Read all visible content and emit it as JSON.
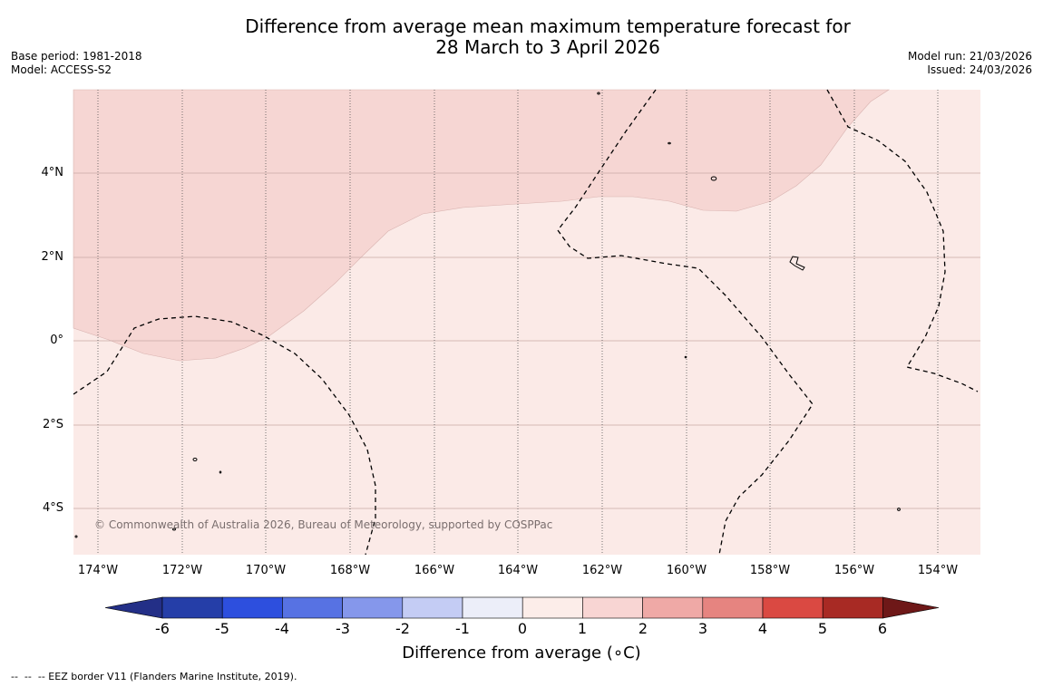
{
  "title_line1": "Difference from average mean maximum temperature forecast for",
  "title_line2": "28 March to 3 April 2026",
  "base_period": "Base period: 1981-2018",
  "model": "Model: ACCESS-S2",
  "model_run": "Model run: 21/03/2026",
  "issued": "Issued: 24/03/2026",
  "copyright": "© Commonwealth of Australia 2026, Bureau of Meteorology, supported by COSPPac",
  "lat_labels": [
    "4°N",
    "2°N",
    "0°",
    "2°S",
    "4°S"
  ],
  "lon_labels": [
    "174°W",
    "172°W",
    "170°W",
    "168°W",
    "166°W",
    "164°W",
    "162°W",
    "160°W",
    "158°W",
    "156°W",
    "154°W"
  ],
  "colorbar": {
    "title": "Difference from average (∘C)",
    "labels": [
      "-6",
      "-5",
      "-4",
      "-3",
      "-2",
      "-1",
      "0",
      "1",
      "2",
      "3",
      "4",
      "5",
      "6"
    ],
    "colors": [
      "#232f87",
      "#253ea8",
      "#2d4fde",
      "#5772e3",
      "#8597eb",
      "#c4ccf4",
      "#eceef9",
      "#fcede9",
      "#f8d5d3",
      "#efa9a6",
      "#e68480",
      "#da4942",
      "#a82a24",
      "#6e1818"
    ]
  },
  "map_colors": {
    "zone_0_1": "#fbeae7",
    "zone_1_2": "#f6d6d3"
  },
  "footer": "--  --  -- EEZ border V11 (Flanders Marine Institute, 2019)."
}
